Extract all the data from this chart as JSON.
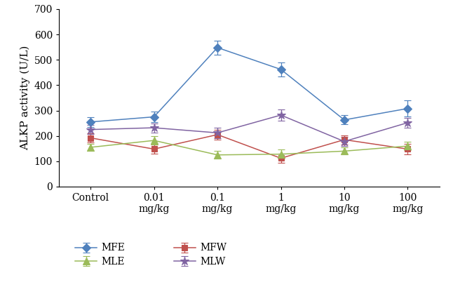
{
  "x_positions": [
    0,
    1,
    2,
    3,
    4,
    5
  ],
  "x_labels": [
    "Control",
    "0.01\nmg/kg",
    "0.1\nmg/kg",
    "1\nmg/kg",
    "10\nmg/kg",
    "100\nmg/kg"
  ],
  "series": {
    "MFE": {
      "y": [
        255,
        275,
        548,
        462,
        263,
        308
      ],
      "yerr": [
        20,
        22,
        28,
        28,
        18,
        32
      ],
      "color": "#4F81BD",
      "marker": "D",
      "markersize": 6
    },
    "MFW": {
      "y": [
        192,
        148,
        205,
        112,
        185,
        148
      ],
      "yerr": [
        18,
        18,
        20,
        18,
        18,
        22
      ],
      "color": "#C0504D",
      "marker": "s",
      "markersize": 6
    },
    "MLE": {
      "y": [
        155,
        182,
        125,
        128,
        140,
        160
      ],
      "yerr": [
        14,
        16,
        15,
        18,
        14,
        16
      ],
      "color": "#9BBB59",
      "marker": "^",
      "markersize": 7
    },
    "MLW": {
      "y": [
        225,
        232,
        212,
        282,
        178,
        252
      ],
      "yerr": [
        17,
        18,
        20,
        22,
        17,
        20
      ],
      "color": "#8064A2",
      "marker": "*",
      "markersize": 9
    }
  },
  "ylabel": "ALKP activity (U/L)",
  "ylim": [
    0,
    700
  ],
  "yticks": [
    0,
    100,
    200,
    300,
    400,
    500,
    600,
    700
  ],
  "background_color": "#ffffff",
  "legend_order": [
    "MFE",
    "MFW",
    "MLE",
    "MLW"
  ]
}
